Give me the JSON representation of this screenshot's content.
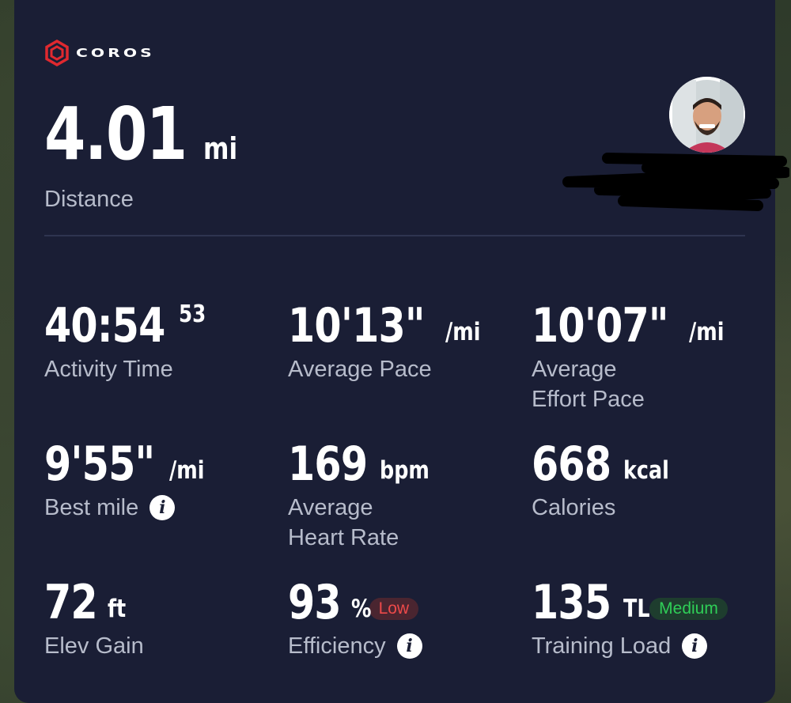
{
  "brand": {
    "name": "COROS",
    "logo_color": "#e0292f"
  },
  "hero": {
    "value": "4.01",
    "unit": "mi",
    "label": "Distance"
  },
  "stats": {
    "activity_time": {
      "value": "40:54",
      "sup": "53",
      "label": "Activity Time"
    },
    "average_pace": {
      "value": "10'13\"",
      "unit": "/mi",
      "label": "Average Pace"
    },
    "effort_pace": {
      "value": "10'07\"",
      "unit": "/mi",
      "label_line1": "Average",
      "label_line2": "Effort Pace"
    },
    "best_mile": {
      "value": "9'55\"",
      "unit": "/mi",
      "label": "Best mile"
    },
    "heart_rate": {
      "value": "169",
      "unit": "bpm",
      "label_line1": "Average",
      "label_line2": "Heart Rate"
    },
    "calories": {
      "value": "668",
      "unit": "kcal",
      "label": "Calories"
    },
    "elev_gain": {
      "value": "72",
      "unit": "ft",
      "label": "Elev Gain"
    },
    "efficiency": {
      "value": "93",
      "unit": "%",
      "badge": "Low",
      "label": "Efficiency"
    },
    "training_load": {
      "value": "135",
      "unit": "TL",
      "badge": "Medium",
      "label": "Training Load"
    }
  },
  "icons": {
    "info": "i",
    "logo": "hexagon-logo-icon"
  },
  "colors": {
    "card_bg": "#1a1e35",
    "label": "#b7bccb",
    "badge_low": "#ee4a4a",
    "badge_medium": "#2fce57"
  }
}
